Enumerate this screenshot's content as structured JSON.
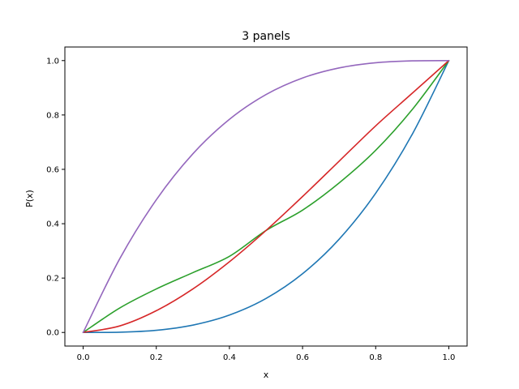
{
  "chart_data": {
    "type": "line",
    "title": "3 panels",
    "xlabel": "x",
    "ylabel": "P(x)",
    "xlim": [
      -0.05,
      1.05
    ],
    "ylim": [
      -0.05,
      1.05
    ],
    "xticks": [
      0.0,
      0.2,
      0.4,
      0.6,
      0.8,
      1.0
    ],
    "yticks": [
      0.0,
      0.2,
      0.4,
      0.6,
      0.8,
      1.0
    ],
    "xtick_labels": [
      "0.0",
      "0.2",
      "0.4",
      "0.6",
      "0.8",
      "1.0"
    ],
    "ytick_labels": [
      "0.0",
      "0.2",
      "0.4",
      "0.6",
      "0.8",
      "1.0"
    ],
    "grid": false,
    "x": [
      0.0,
      0.1,
      0.2,
      0.3,
      0.4,
      0.5,
      0.6,
      0.7,
      0.8,
      0.9,
      1.0
    ],
    "series": [
      {
        "name": "blue",
        "color": "#1f77b4",
        "values": [
          0.0,
          0.001,
          0.008,
          0.027,
          0.064,
          0.125,
          0.216,
          0.343,
          0.512,
          0.729,
          1.0
        ]
      },
      {
        "name": "green",
        "color": "#2ca02c",
        "values": [
          0.0,
          0.09,
          0.16,
          0.22,
          0.28,
          0.375,
          0.45,
          0.55,
          0.67,
          0.82,
          1.0
        ]
      },
      {
        "name": "red",
        "color": "#d62728",
        "values": [
          0.0,
          0.024,
          0.08,
          0.16,
          0.26,
          0.375,
          0.5,
          0.63,
          0.76,
          0.88,
          1.0
        ]
      },
      {
        "name": "purple",
        "color": "#9467bd",
        "values": [
          0.0,
          0.271,
          0.488,
          0.657,
          0.784,
          0.875,
          0.936,
          0.973,
          0.992,
          0.999,
          1.0
        ]
      }
    ]
  }
}
